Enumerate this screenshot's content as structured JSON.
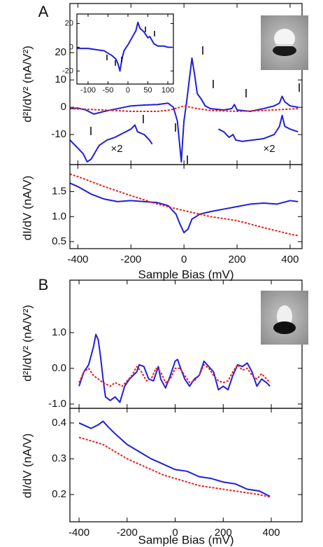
{
  "chart_data": [
    {
      "type": "line",
      "panel_label": "A",
      "ylabel": "d²I/dV² (nA/V²)",
      "xlim": [
        -430,
        445
      ],
      "ylim": [
        -21,
        38
      ],
      "xticks": [
        -400,
        -200,
        0,
        200,
        400
      ],
      "show_xtick_labels": false,
      "yticks": [
        -10,
        0,
        10,
        20
      ],
      "annotations": [
        "×2",
        "×2"
      ],
      "series": [
        {
          "color": "#1f1fdc",
          "dash": false,
          "x": [
            -430,
            -400,
            -370,
            -340,
            -300,
            -250,
            -200,
            -150,
            -100,
            -60,
            -40,
            -25,
            -15,
            -10,
            -5,
            0,
            10,
            20,
            30,
            40,
            50,
            65,
            80,
            100,
            150,
            180,
            190,
            200,
            250,
            300,
            340,
            360,
            370,
            380,
            400,
            430
          ],
          "values": [
            -0.5,
            -0.3,
            -1,
            -2.5,
            -1.5,
            -0.5,
            0.5,
            0.8,
            1,
            1.5,
            0,
            -5,
            -15,
            -20,
            -12,
            -5,
            2,
            10,
            18,
            12,
            5,
            3,
            0.5,
            -0.5,
            -1,
            -0.5,
            1,
            -1,
            -1.5,
            -0.5,
            0.5,
            1.5,
            4,
            2,
            0.5,
            0
          ]
        },
        {
          "color": "#e8201c",
          "dash": true,
          "x": [
            -430,
            -300,
            -200,
            -100,
            -50,
            0,
            50,
            100,
            200,
            300,
            430
          ],
          "values": [
            -0.5,
            -1,
            -1.5,
            -1.5,
            -1,
            0.5,
            -0.5,
            -1.2,
            -1.5,
            -1.2,
            -0.5
          ]
        },
        {
          "color": "#1f1fdc",
          "dash": false,
          "x": [
            -430,
            -410,
            -380,
            -365,
            -350,
            -320,
            -290,
            -260,
            -230,
            -200,
            -185,
            -175,
            -150,
            -130,
            -120
          ],
          "values": [
            -12,
            -14,
            -17,
            -20,
            -19,
            -14,
            -12,
            -11,
            -9.5,
            -8,
            -6.5,
            -9,
            -10,
            -12,
            -13.5
          ]
        },
        {
          "color": "#1f1fdc",
          "dash": false,
          "x": [
            130,
            150,
            170,
            185,
            195,
            220,
            260,
            300,
            340,
            360,
            370,
            380,
            400,
            430
          ],
          "values": [
            -8,
            -9,
            -11,
            -10,
            -12,
            -12.5,
            -12,
            -11.5,
            -10,
            -7,
            -3,
            -7,
            -8,
            -9
          ]
        }
      ]
    },
    {
      "type": "line",
      "xlim": [
        -128,
        114
      ],
      "ylim": [
        -31,
        28
      ],
      "xticks": [
        -100,
        -50,
        0,
        50,
        100
      ],
      "show_xtick_labels": true,
      "yticks": [
        -20,
        0,
        20
      ],
      "series": [
        {
          "color": "#1f1fdc",
          "dash": false,
          "x": [
            -128,
            -100,
            -80,
            -60,
            -50,
            -40,
            -30,
            -25,
            -20,
            -15,
            -10,
            0,
            10,
            20,
            25,
            30,
            40,
            50,
            55,
            65,
            75,
            90,
            100,
            110
          ],
          "values": [
            -1,
            -1,
            -2,
            -3,
            -5,
            -7,
            -10,
            -14,
            -20,
            -10,
            -3,
            2,
            8,
            14,
            21,
            16,
            13,
            8,
            9,
            3,
            1,
            1,
            0,
            0
          ]
        }
      ]
    },
    {
      "type": "line",
      "ylabel": "dI/dV (nA/V)",
      "xlabel": "Sample Bias (mV)",
      "xlim": [
        -430,
        445
      ],
      "ylim": [
        0.36,
        2.04
      ],
      "xticks": [
        -400,
        -200,
        0,
        200,
        400
      ],
      "show_xtick_labels": true,
      "yticks": [
        0.5,
        {
          "value": 1,
          "label": "1.0"
        },
        1.5
      ],
      "series": [
        {
          "color": "#1f1fdc",
          "dash": false,
          "x": [
            -430,
            -400,
            -350,
            -300,
            -250,
            -200,
            -150,
            -100,
            -60,
            -30,
            -15,
            0,
            15,
            30,
            60,
            100,
            150,
            200,
            250,
            300,
            350,
            400,
            430
          ],
          "values": [
            1.67,
            1.6,
            1.45,
            1.35,
            1.3,
            1.32,
            1.3,
            1.28,
            1.22,
            1.05,
            0.85,
            0.68,
            0.75,
            0.95,
            1.05,
            1.1,
            1.15,
            1.2,
            1.25,
            1.27,
            1.25,
            1.32,
            1.3
          ]
        },
        {
          "color": "#e8201c",
          "dash": true,
          "x": [
            -430,
            -400,
            -300,
            -200,
            -100,
            0,
            100,
            200,
            300,
            400,
            430
          ],
          "values": [
            1.85,
            1.8,
            1.6,
            1.42,
            1.25,
            1.12,
            1.0,
            0.92,
            0.78,
            0.65,
            0.62
          ]
        }
      ]
    },
    {
      "type": "line",
      "panel_label": "B",
      "ylabel": "d²I/dV² (nA/V²)",
      "xlim": [
        -438,
        528
      ],
      "ylim": [
        -1.12,
        2.47
      ],
      "xticks": [
        -400,
        -200,
        0,
        200,
        400
      ],
      "show_xtick_labels": false,
      "yticks": [
        {
          "value": -1,
          "label": "-1.0"
        },
        {
          "value": 0,
          "label": "0.0"
        },
        {
          "value": 1,
          "label": "1.0"
        }
      ],
      "series": [
        {
          "color": "#1f1fdc",
          "dash": false,
          "x": [
            -400,
            -380,
            -360,
            -340,
            -330,
            -320,
            -310,
            -300,
            -290,
            -270,
            -250,
            -230,
            -210,
            -190,
            -160,
            -150,
            -130,
            -110,
            -90,
            -70,
            -60,
            -40,
            -20,
            0,
            10,
            20,
            40,
            60,
            80,
            100,
            120,
            140,
            160,
            180,
            200,
            220,
            240,
            260,
            280,
            300,
            320,
            340,
            360,
            380,
            395
          ],
          "values": [
            -0.5,
            -0.1,
            0.1,
            0.6,
            0.95,
            0.8,
            0.3,
            -0.3,
            -0.8,
            -0.9,
            -0.8,
            -0.95,
            -0.5,
            -0.3,
            -0.1,
            0.1,
            0.05,
            -0.3,
            -0.35,
            0.05,
            -0.3,
            -0.55,
            -0.2,
            0.2,
            0.25,
            0.05,
            -0.3,
            -0.5,
            -0.3,
            -0.2,
            0.2,
            0.05,
            -0.1,
            -0.6,
            -0.5,
            -0.6,
            -0.2,
            0.1,
            0.05,
            0.15,
            -0.1,
            -0.5,
            -0.3,
            -0.4,
            -0.5
          ]
        },
        {
          "color": "#e8201c",
          "dash": true,
          "x": [
            -400,
            -380,
            -360,
            -340,
            -320,
            -300,
            -270,
            -250,
            -220,
            -200,
            -180,
            -160,
            -140,
            -120,
            -100,
            -80,
            -60,
            -40,
            -20,
            0,
            20,
            40,
            60,
            80,
            100,
            120,
            140,
            160,
            180,
            200,
            220,
            240,
            260,
            280,
            300,
            320,
            340,
            360,
            380,
            395
          ],
          "values": [
            -0.4,
            -0.1,
            0.0,
            -0.2,
            -0.3,
            -0.4,
            -0.5,
            -0.4,
            -0.5,
            -0.35,
            -0.2,
            0.05,
            -0.1,
            -0.35,
            -0.3,
            0.0,
            -0.1,
            -0.4,
            -0.3,
            0.0,
            0.0,
            -0.2,
            -0.4,
            -0.35,
            -0.2,
            0.1,
            0.0,
            -0.2,
            -0.35,
            -0.4,
            -0.35,
            -0.1,
            0.1,
            -0.05,
            0.0,
            -0.2,
            -0.3,
            -0.15,
            -0.3,
            -0.4
          ]
        }
      ]
    },
    {
      "type": "line",
      "ylabel": "dI/dV (nA/V)",
      "xlabel": "Sample Bias (mV)",
      "xlim": [
        -438,
        528
      ],
      "ylim": [
        0.124,
        0.441
      ],
      "xticks": [
        -400,
        -200,
        0,
        200,
        400
      ],
      "show_xtick_labels": true,
      "yticks": [
        0.2,
        0.3,
        0.4
      ],
      "series": [
        {
          "color": "#1f1fdc",
          "dash": false,
          "x": [
            -400,
            -350,
            -320,
            -300,
            -280,
            -250,
            -200,
            -150,
            -100,
            -50,
            0,
            50,
            100,
            150,
            200,
            250,
            300,
            350,
            395
          ],
          "values": [
            0.4,
            0.385,
            0.395,
            0.405,
            0.39,
            0.37,
            0.34,
            0.32,
            0.3,
            0.285,
            0.27,
            0.265,
            0.25,
            0.245,
            0.235,
            0.23,
            0.215,
            0.21,
            0.195
          ]
        },
        {
          "color": "#e8201c",
          "dash": true,
          "x": [
            -400,
            -350,
            -300,
            -250,
            -200,
            -150,
            -100,
            -50,
            0,
            50,
            100,
            150,
            200,
            250,
            300,
            350,
            395
          ],
          "values": [
            0.36,
            0.35,
            0.34,
            0.32,
            0.3,
            0.285,
            0.27,
            0.255,
            0.245,
            0.235,
            0.225,
            0.22,
            0.215,
            0.21,
            0.205,
            0.2,
            0.193
          ]
        }
      ]
    }
  ]
}
